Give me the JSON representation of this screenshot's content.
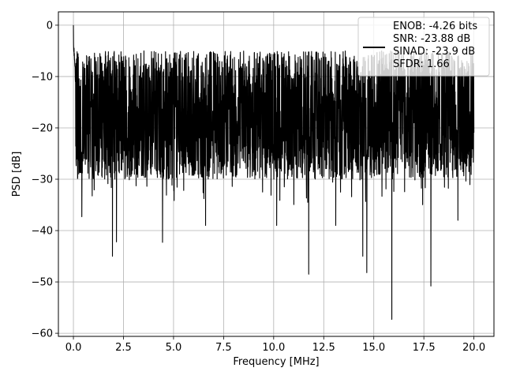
{
  "chart_data": {
    "type": "line",
    "title": "",
    "xlabel": "Frequency [MHz]",
    "ylabel": "PSD [dB]",
    "xlim": [
      -0.75,
      21.0
    ],
    "ylim": [
      -60.6,
      2.6
    ],
    "xticks": [
      0.0,
      2.5,
      5.0,
      7.5,
      10.0,
      12.5,
      15.0,
      17.5,
      20.0
    ],
    "xtick_labels": [
      "0.0",
      "2.5",
      "5.0",
      "7.5",
      "10.0",
      "12.5",
      "15.0",
      "17.5",
      "20.0"
    ],
    "yticks": [
      0,
      -10,
      -20,
      -30,
      -40,
      -50,
      -60
    ],
    "ytick_labels": [
      "0",
      "−10",
      "−20",
      "−30",
      "−40",
      "−50",
      "−60"
    ],
    "grid": true,
    "legend_position": "top-right",
    "series": [
      {
        "name": "ENOB: -4.26 bits\nSNR: -23.88 dB\nSINAD: -23.9 dB\nSFDR: 1.66",
        "color": "#000000",
        "x_range": [
          0.0,
          20.0
        ],
        "noise_floor_db": -18,
        "upper_envelope_db": -5,
        "lower_envelope_db": -30,
        "peak": {
          "x": 0.0,
          "y": 0.0
        },
        "notable_dips": [
          {
            "x": 0.42,
            "y": -37.3
          },
          {
            "x": 1.95,
            "y": -45.0
          },
          {
            "x": 2.15,
            "y": -42.2
          },
          {
            "x": 4.45,
            "y": -42.3
          },
          {
            "x": 6.6,
            "y": -39.0
          },
          {
            "x": 10.15,
            "y": -39.0
          },
          {
            "x": 11.75,
            "y": -48.5
          },
          {
            "x": 13.1,
            "y": -39.0
          },
          {
            "x": 14.45,
            "y": -45.0
          },
          {
            "x": 14.65,
            "y": -48.2
          },
          {
            "x": 15.9,
            "y": -57.3
          },
          {
            "x": 17.85,
            "y": -50.8
          },
          {
            "x": 19.2,
            "y": -38.0
          }
        ]
      }
    ]
  }
}
